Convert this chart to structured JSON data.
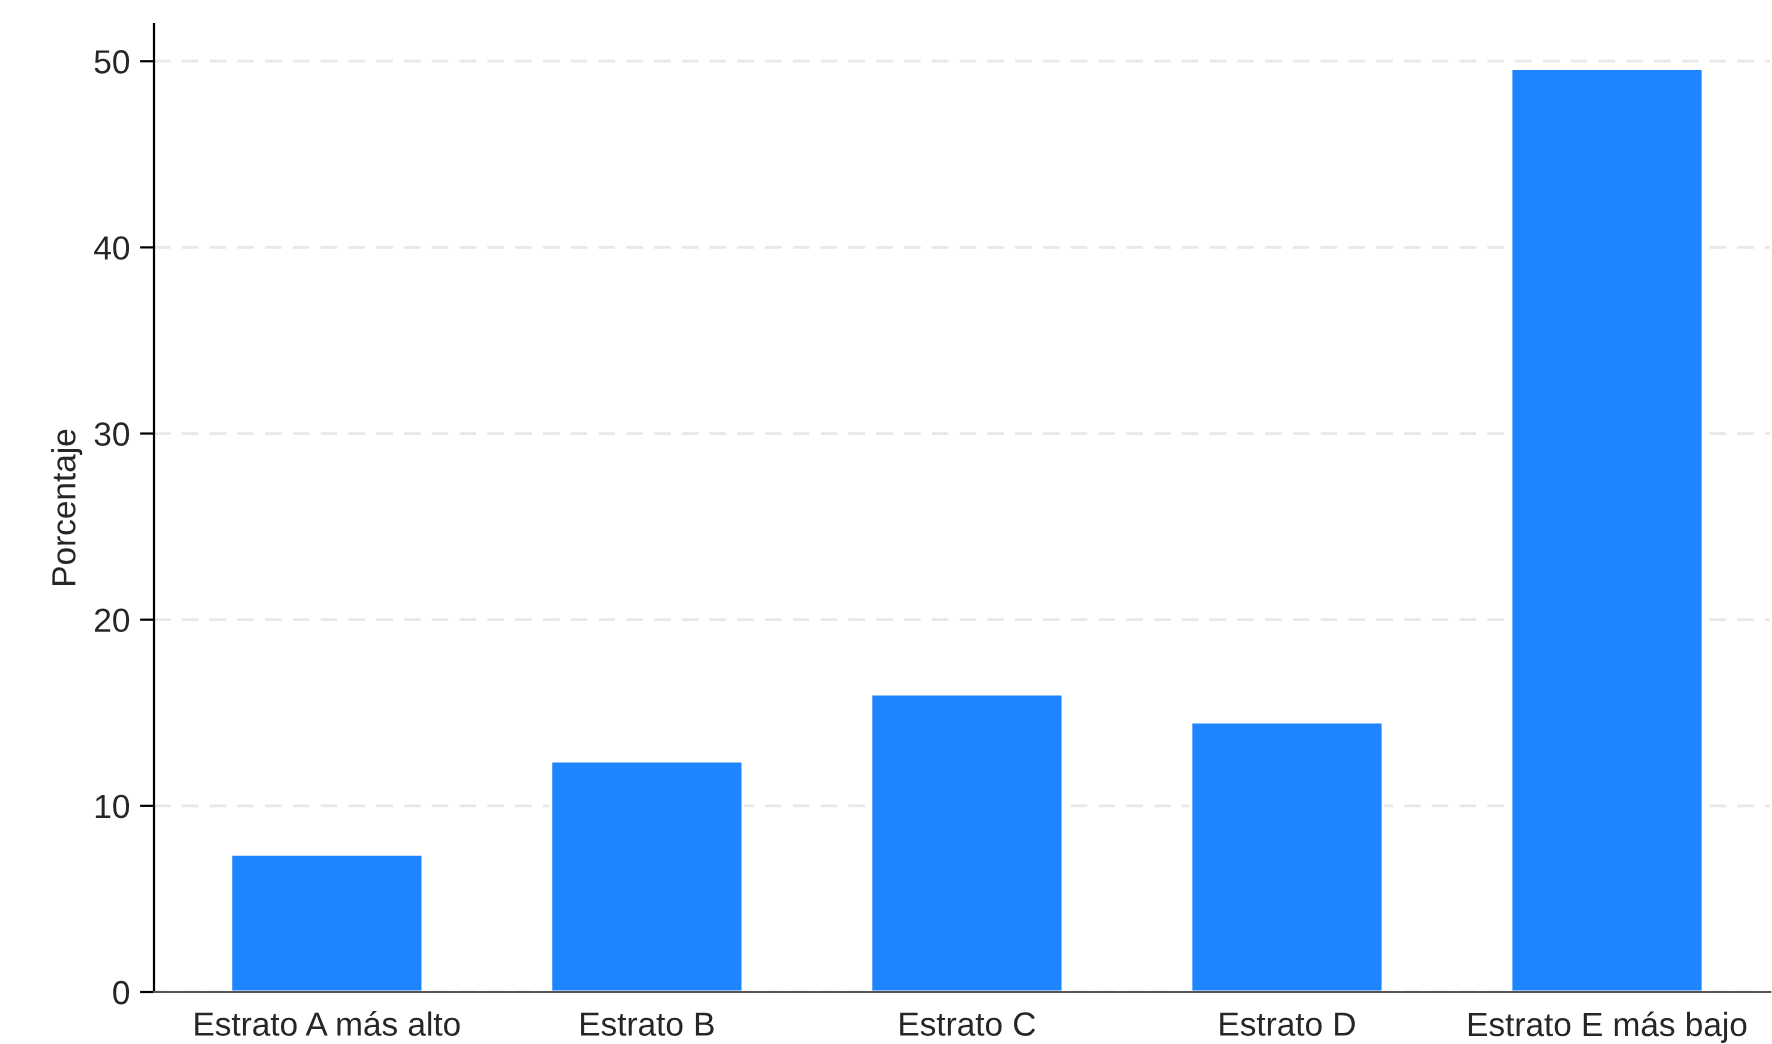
{
  "chart_data": {
    "type": "bar",
    "ylabel": "Porcentaje",
    "categories": [
      "Estrato A más alto",
      "Estrato B",
      "Estrato C",
      "Estrato D",
      "Estrato E más bajo"
    ],
    "values": [
      7.4,
      12.4,
      16.0,
      14.5,
      49.6
    ],
    "color": "#1e85ff",
    "ylim": [
      0,
      52
    ],
    "yticks": [
      0,
      10,
      20,
      30,
      40,
      50
    ],
    "grid": "y"
  }
}
